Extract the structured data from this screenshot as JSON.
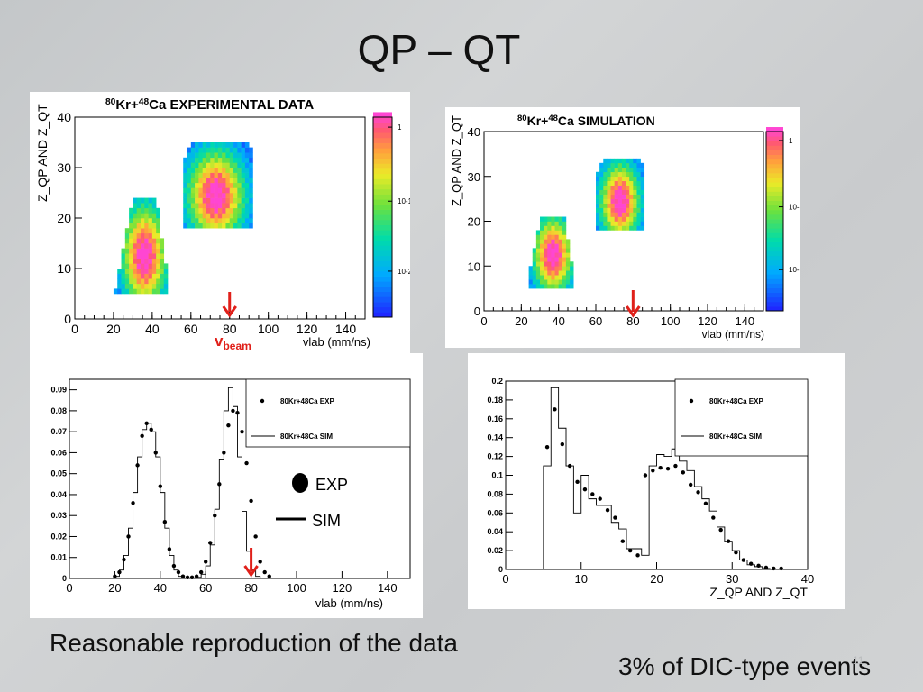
{
  "slide": {
    "title": "QP – QT",
    "caption_left": "Reasonable reproduction of the data",
    "caption_right": "3% of DIC-type events",
    "page_number": "11"
  },
  "colors": {
    "exp": "#000000",
    "sim": "#000000",
    "arrow": "#e0201a",
    "frame": "#000000"
  },
  "chart_data": [
    {
      "id": "exp2d",
      "type": "heatmap",
      "title_mass1": "80",
      "title_el1": "Kr+",
      "title_mass2": "48",
      "title_el2": "Ca EXPERIMENTAL DATA",
      "ylabel": "Z_QP AND Z_QT",
      "xlabel": "vlab (mm/ns)",
      "xlim": [
        0,
        150
      ],
      "ylim": [
        0,
        40
      ],
      "xticks": [
        "0",
        "20",
        "40",
        "60",
        "80",
        "100",
        "120",
        "140"
      ],
      "yticks": [
        "0",
        "10",
        "20",
        "30",
        "40"
      ],
      "colorbar_ticks": [
        "1",
        "10-1",
        "10-2"
      ],
      "annotation": {
        "text": "v",
        "sub": "beam",
        "x": 80
      },
      "clusters": [
        {
          "name": "low-velocity",
          "x": [
            20,
            48
          ],
          "y": [
            5,
            24
          ],
          "peak": [
            35,
            12
          ]
        },
        {
          "name": "high-velocity",
          "x": [
            56,
            92
          ],
          "y": [
            18,
            35
          ],
          "peak": [
            72,
            24
          ]
        }
      ]
    },
    {
      "id": "sim2d",
      "type": "heatmap",
      "title_mass1": "80",
      "title_el1": "Kr+",
      "title_mass2": "48",
      "title_el2": "Ca SIMULATION",
      "ylabel": "Z_QP AND Z_QT",
      "xlabel": "vlab (mm/ns)",
      "xlim": [
        0,
        150
      ],
      "ylim": [
        0,
        40
      ],
      "xticks": [
        "0",
        "20",
        "40",
        "60",
        "80",
        "100",
        "120",
        "140"
      ],
      "yticks": [
        "0",
        "10",
        "20",
        "30",
        "40"
      ],
      "colorbar_ticks": [
        "1",
        "10-1",
        "10-2"
      ],
      "annotation": {
        "x": 80
      },
      "clusters": [
        {
          "name": "low-velocity",
          "x": [
            22,
            48
          ],
          "y": [
            5,
            21
          ],
          "peak": [
            36,
            12
          ]
        },
        {
          "name": "high-velocity",
          "x": [
            60,
            86
          ],
          "y": [
            18,
            34
          ],
          "peak": [
            72,
            24
          ]
        }
      ]
    },
    {
      "id": "vlab1d",
      "type": "line",
      "xlabel": "vlab (mm/ns)",
      "xlim": [
        0,
        150
      ],
      "ylim": [
        0,
        0.095
      ],
      "xticks": [
        0,
        20,
        40,
        60,
        80,
        100,
        120,
        140
      ],
      "yticks": [
        0,
        0.01,
        0.02,
        0.03,
        0.04,
        0.05,
        0.06,
        0.07,
        0.08,
        0.09
      ],
      "legend": {
        "exp": "80Kr+48Ca EXP",
        "sim": "80Kr+48Ca SIM"
      },
      "overlay_legend": {
        "exp": "EXP",
        "sim": "SIM"
      },
      "annotation": {
        "x": 80
      },
      "series": [
        {
          "name": "80Kr+48Ca EXP",
          "style": "markers",
          "x": [
            20,
            22,
            24,
            26,
            28,
            30,
            32,
            34,
            36,
            38,
            40,
            42,
            44,
            46,
            48,
            50,
            52,
            54,
            56,
            58,
            60,
            62,
            64,
            66,
            68,
            70,
            72,
            74,
            76,
            78,
            80,
            82,
            84,
            86,
            88
          ],
          "values": [
            0.001,
            0.003,
            0.009,
            0.02,
            0.036,
            0.054,
            0.068,
            0.074,
            0.071,
            0.06,
            0.044,
            0.027,
            0.014,
            0.006,
            0.003,
            0.001,
            0.0005,
            0.0005,
            0.001,
            0.003,
            0.008,
            0.017,
            0.03,
            0.045,
            0.06,
            0.073,
            0.08,
            0.079,
            0.07,
            0.055,
            0.037,
            0.02,
            0.008,
            0.003,
            0.001
          ]
        },
        {
          "name": "80Kr+48Ca SIM",
          "style": "step",
          "x": [
            20,
            22,
            24,
            26,
            28,
            30,
            32,
            34,
            36,
            38,
            40,
            42,
            44,
            46,
            48,
            50,
            52,
            54,
            56,
            58,
            60,
            62,
            64,
            66,
            68,
            70,
            72,
            74,
            76,
            78,
            80,
            82,
            84,
            86,
            88
          ],
          "values": [
            0.001,
            0.004,
            0.011,
            0.024,
            0.041,
            0.058,
            0.071,
            0.074,
            0.07,
            0.058,
            0.041,
            0.024,
            0.011,
            0.004,
            0.001,
            0,
            0,
            0,
            0.0005,
            0.002,
            0.006,
            0.016,
            0.033,
            0.057,
            0.08,
            0.091,
            0.082,
            0.058,
            0.032,
            0.013,
            0.004,
            0.001,
            0,
            0,
            0
          ]
        }
      ]
    },
    {
      "id": "z1d",
      "type": "line",
      "xlabel": "Z_QP AND Z_QT",
      "xlim": [
        0,
        40
      ],
      "ylim": [
        0,
        0.2
      ],
      "xticks": [
        0,
        10,
        20,
        30,
        40
      ],
      "yticks": [
        0,
        0.02,
        0.04,
        0.06,
        0.08,
        0.1,
        0.12,
        0.14,
        0.16,
        0.18,
        0.2
      ],
      "legend": {
        "exp": "80Kr+48Ca EXP",
        "sim": "80Kr+48Ca SIM"
      },
      "series": [
        {
          "name": "80Kr+48Ca EXP",
          "style": "markers",
          "x": [
            5.5,
            6.5,
            7.5,
            8.5,
            9.5,
            10.5,
            11.5,
            12.5,
            13.5,
            14.5,
            15.5,
            16.5,
            17.5,
            18.5,
            19.5,
            20.5,
            21.5,
            22.5,
            23.5,
            24.5,
            25.5,
            26.5,
            27.5,
            28.5,
            29.5,
            30.5,
            31.5,
            32.5,
            33.5,
            34.5,
            35.5,
            36.5
          ],
          "values": [
            0.13,
            0.17,
            0.133,
            0.11,
            0.093,
            0.085,
            0.08,
            0.075,
            0.063,
            0.055,
            0.03,
            0.02,
            0.015,
            0.1,
            0.105,
            0.108,
            0.107,
            0.11,
            0.103,
            0.09,
            0.082,
            0.07,
            0.055,
            0.042,
            0.03,
            0.018,
            0.01,
            0.006,
            0.004,
            0.002,
            0.001,
            0.001
          ]
        },
        {
          "name": "80Kr+48Ca SIM",
          "style": "step",
          "x": [
            5,
            6,
            7,
            8,
            9,
            10,
            11,
            12,
            13,
            14,
            15,
            16,
            17,
            18,
            19,
            20,
            21,
            22,
            23,
            24,
            25,
            26,
            27,
            28,
            29,
            30,
            31,
            32,
            33,
            34,
            35,
            36,
            37
          ],
          "values": [
            0.11,
            0.193,
            0.15,
            0.11,
            0.06,
            0.1,
            0.075,
            0.068,
            0.068,
            0.05,
            0.043,
            0.022,
            0.022,
            0.015,
            0.11,
            0.122,
            0.12,
            0.128,
            0.115,
            0.105,
            0.088,
            0.075,
            0.062,
            0.045,
            0.03,
            0.02,
            0.01,
            0.005,
            0.003,
            0.001,
            0,
            0,
            0
          ]
        }
      ]
    }
  ]
}
